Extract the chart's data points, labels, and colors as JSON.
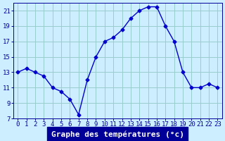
{
  "hours": [
    0,
    1,
    2,
    3,
    4,
    5,
    6,
    7,
    8,
    9,
    10,
    11,
    12,
    13,
    14,
    15,
    16,
    17,
    18,
    19,
    20,
    21,
    22,
    23
  ],
  "temperatures": [
    13.0,
    13.5,
    13.0,
    12.5,
    11.0,
    10.5,
    9.5,
    7.5,
    12.0,
    15.0,
    17.0,
    17.5,
    18.5,
    20.0,
    21.0,
    21.5,
    21.5,
    19.0,
    17.0,
    13.0,
    11.0,
    11.0,
    11.5,
    11.0
  ],
  "xlabel": "Graphe des températures (°c)",
  "xlim_min": -0.5,
  "xlim_max": 23.5,
  "ylim_min": 7,
  "ylim_max": 22,
  "yticks": [
    7,
    9,
    11,
    13,
    15,
    17,
    19,
    21
  ],
  "xticks": [
    0,
    1,
    2,
    3,
    4,
    5,
    6,
    7,
    8,
    9,
    10,
    11,
    12,
    13,
    14,
    15,
    16,
    17,
    18,
    19,
    20,
    21,
    22,
    23
  ],
  "line_color": "#0000cc",
  "marker": "D",
  "marker_size": 2.5,
  "bg_color": "#cceeff",
  "grid_color": "#99cccc",
  "xlabel_bg": "#000099",
  "xlabel_fg": "#ffffff",
  "tick_label_color": "#000099",
  "tick_fontsize": 6.5,
  "xlabel_fontsize": 8,
  "linewidth": 1.0
}
